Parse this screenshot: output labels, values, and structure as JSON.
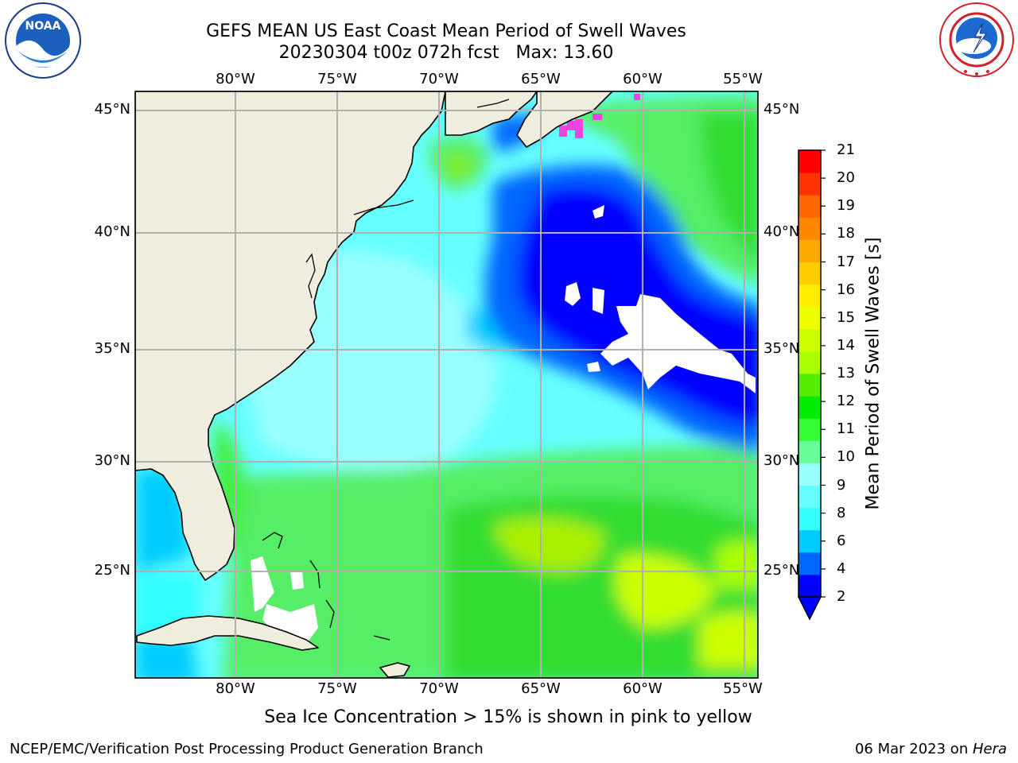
{
  "header": {
    "title": "GEFS MEAN US East Coast Mean Period of Swell Waves",
    "subtitle": "20230304 t00z 072h fcst   Max: 13.60"
  },
  "logos": {
    "noaa": "NOAA",
    "nws": "NATIONAL WEATHER SERVICE"
  },
  "map": {
    "projection": "plate-carree",
    "lon_labels": [
      "80°W",
      "75°W",
      "70°W",
      "65°W",
      "60°W",
      "55°W"
    ],
    "lat_labels": [
      "45°N",
      "40°N",
      "35°N",
      "30°N",
      "25°N"
    ],
    "land_color": "#efedde",
    "grid_color": "#b0b0b0",
    "note": "Sea Ice Concentration > 15% is shown in pink to yellow"
  },
  "colorbar": {
    "title": "Mean Period of Swell Waves [s]",
    "ticks": [
      "2",
      "4",
      "6",
      "8",
      "9",
      "10",
      "11",
      "12",
      "13",
      "14",
      "15",
      "16",
      "17",
      "18",
      "19",
      "20",
      "21"
    ],
    "colors": [
      "#0000ff",
      "#0066ff",
      "#00ccff",
      "#33ffff",
      "#66ffff",
      "#99ffff",
      "#66ff99",
      "#33ff33",
      "#00ee00",
      "#55ee00",
      "#aaff00",
      "#ccff00",
      "#eeff00",
      "#ffee00",
      "#ffcc00",
      "#ffaa00",
      "#ff8800",
      "#ff6600",
      "#ff3300",
      "#ff0000"
    ],
    "extend_color": "#0000ff"
  },
  "footer": {
    "left": "NCEP/EMC/Verification Post Processing Product Generation Branch",
    "right_date": "06 Mar 2023 on ",
    "right_machine": "Hera"
  }
}
